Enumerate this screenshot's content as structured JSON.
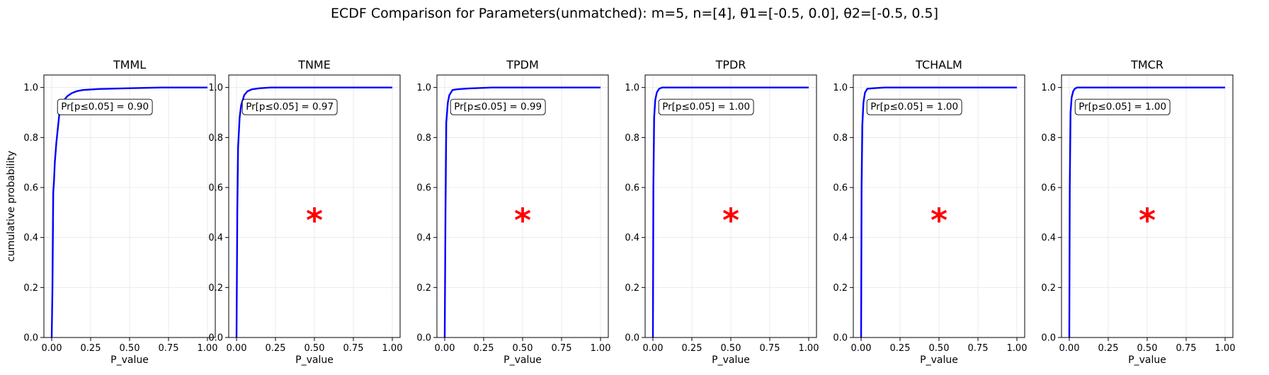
{
  "figure": {
    "title": "ECDF Comparison for Parameters(unmatched): m=5, n=[4], θ1=[-0.5, 0.0], θ2=[-0.5, 0.5]"
  },
  "colors": {
    "line": "#0000ff",
    "marker": "#ff0000",
    "grid": "#e6e6e6",
    "frame": "#000000"
  },
  "chart_data": [
    {
      "type": "line",
      "title": "TMML",
      "xlabel": "P_value",
      "ylabel": "cumulative probability",
      "xlim": [
        -0.05,
        1.05
      ],
      "ylim": [
        0.0,
        1.05
      ],
      "xticks": [
        "0.00",
        "0.25",
        "0.50",
        "0.75",
        "1.00"
      ],
      "yticks": [
        "0.0",
        "0.2",
        "0.4",
        "0.6",
        "0.8",
        "1.0"
      ],
      "grid": true,
      "annotation": "Pr[p≤0.05] = 0.90",
      "marker": "",
      "series": [
        {
          "x": [
            0.0,
            0.005,
            0.01,
            0.015,
            0.02,
            0.03,
            0.04,
            0.05,
            0.06,
            0.08,
            0.1,
            0.13,
            0.16,
            0.2,
            0.3,
            0.5,
            0.7,
            1.0
          ],
          "y": [
            0.0,
            0.2,
            0.58,
            0.63,
            0.7,
            0.78,
            0.84,
            0.9,
            0.93,
            0.95,
            0.965,
            0.978,
            0.985,
            0.99,
            0.994,
            0.997,
            1.0,
            1.0
          ]
        }
      ]
    },
    {
      "type": "line",
      "title": "TNME",
      "xlabel": "P_value",
      "xlim": [
        -0.05,
        1.05
      ],
      "ylim": [
        0.0,
        1.05
      ],
      "xticks": [
        "0.00",
        "0.25",
        "0.50",
        "0.75",
        "1.00"
      ],
      "yticks": [
        "0.0",
        "0.2",
        "0.4",
        "0.6",
        "0.8",
        "1.0"
      ],
      "grid": true,
      "annotation": "Pr[p≤0.05] = 0.97",
      "marker": "*",
      "series": [
        {
          "x": [
            0.0,
            0.005,
            0.01,
            0.02,
            0.03,
            0.05,
            0.07,
            0.1,
            0.15,
            0.22,
            1.0
          ],
          "y": [
            0.0,
            0.5,
            0.76,
            0.88,
            0.93,
            0.97,
            0.985,
            0.993,
            0.997,
            1.0,
            1.0
          ]
        }
      ]
    },
    {
      "type": "line",
      "title": "TPDM",
      "xlabel": "P_value",
      "xlim": [
        -0.05,
        1.05
      ],
      "ylim": [
        0.0,
        1.05
      ],
      "xticks": [
        "0.00",
        "0.25",
        "0.50",
        "0.75",
        "1.00"
      ],
      "yticks": [
        "0.0",
        "0.2",
        "0.4",
        "0.6",
        "0.8",
        "1.0"
      ],
      "grid": true,
      "annotation": "Pr[p≤0.05] = 0.99",
      "marker": "*",
      "series": [
        {
          "x": [
            0.0,
            0.005,
            0.01,
            0.02,
            0.03,
            0.05,
            0.08,
            0.15,
            0.3,
            1.0
          ],
          "y": [
            0.0,
            0.5,
            0.86,
            0.94,
            0.97,
            0.99,
            0.993,
            0.996,
            1.0,
            1.0
          ]
        }
      ]
    },
    {
      "type": "line",
      "title": "TPDR",
      "xlabel": "P_value",
      "xlim": [
        -0.05,
        1.05
      ],
      "ylim": [
        0.0,
        1.05
      ],
      "xticks": [
        "0.00",
        "0.25",
        "0.50",
        "0.75",
        "1.00"
      ],
      "yticks": [
        "0.0",
        "0.2",
        "0.4",
        "0.6",
        "0.8",
        "1.0"
      ],
      "grid": true,
      "annotation": "Pr[p≤0.05] = 1.00",
      "marker": "*",
      "series": [
        {
          "x": [
            0.0,
            0.003,
            0.008,
            0.015,
            0.025,
            0.04,
            0.06,
            1.0
          ],
          "y": [
            0.0,
            0.6,
            0.88,
            0.95,
            0.98,
            0.995,
            1.0,
            1.0
          ]
        }
      ]
    },
    {
      "type": "line",
      "title": "TCHALM",
      "xlabel": "P_value",
      "xlim": [
        -0.05,
        1.05
      ],
      "ylim": [
        0.0,
        1.05
      ],
      "xticks": [
        "0.00",
        "0.25",
        "0.50",
        "0.75",
        "1.00"
      ],
      "yticks": [
        "0.0",
        "0.2",
        "0.4",
        "0.6",
        "0.8",
        "1.0"
      ],
      "grid": true,
      "annotation": "Pr[p≤0.05] = 1.00",
      "marker": "*",
      "series": [
        {
          "x": [
            0.0,
            0.003,
            0.008,
            0.015,
            0.025,
            0.04,
            0.08,
            0.15,
            1.0
          ],
          "y": [
            0.0,
            0.6,
            0.85,
            0.94,
            0.98,
            0.995,
            0.997,
            1.0,
            1.0
          ]
        }
      ]
    },
    {
      "type": "line",
      "title": "TMCR",
      "xlabel": "P_value",
      "xlim": [
        -0.05,
        1.05
      ],
      "ylim": [
        0.0,
        1.05
      ],
      "xticks": [
        "0.00",
        "0.25",
        "0.50",
        "0.75",
        "1.00"
      ],
      "yticks": [
        "0.0",
        "0.2",
        "0.4",
        "0.6",
        "0.8",
        "1.0"
      ],
      "grid": true,
      "annotation": "Pr[p≤0.05] = 1.00",
      "marker": "*",
      "series": [
        {
          "x": [
            0.0,
            0.003,
            0.008,
            0.015,
            0.025,
            0.035,
            0.05,
            1.0
          ],
          "y": [
            0.0,
            0.6,
            0.9,
            0.96,
            0.985,
            0.995,
            1.0,
            1.0
          ]
        }
      ]
    }
  ]
}
